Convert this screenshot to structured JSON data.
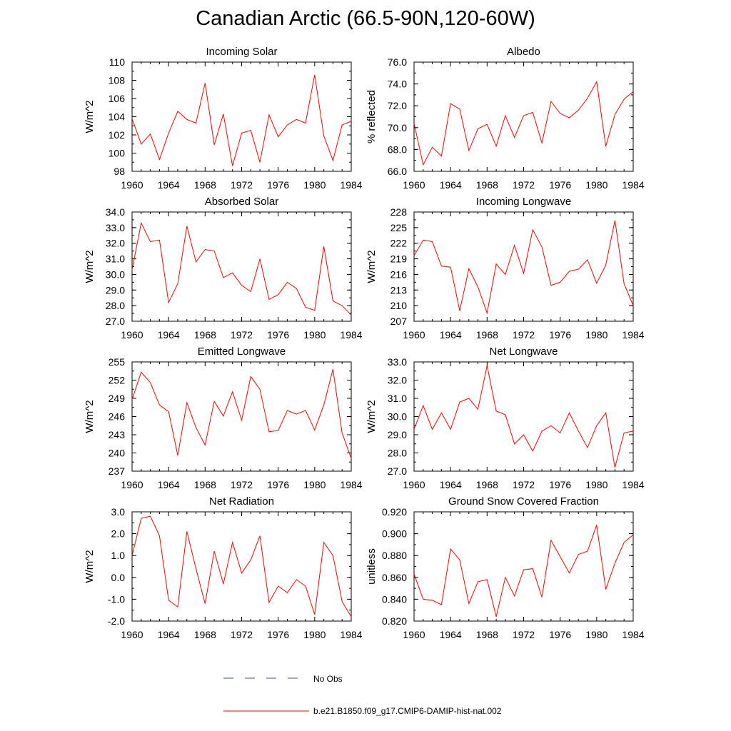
{
  "title": "Canadian Arctic (66.5-90N,120-60W)",
  "legend": {
    "entries": [
      {
        "label": "No Obs",
        "color": "#3d4fa1",
        "dash": "dashed"
      },
      {
        "label": "b.e21.B1850.f09_g17.CMIP6-DAMIP-hist-nat.002",
        "color": "#ff0000",
        "dash": "solid"
      }
    ]
  },
  "chart_data": [
    {
      "type": "line",
      "title": "Incoming Solar",
      "ylabel": "W/m^2",
      "xlabel": "",
      "xlim": [
        1960,
        1984
      ],
      "ylim": [
        98,
        110
      ],
      "xticks": [
        1960,
        1964,
        1968,
        1972,
        1976,
        1980,
        1984
      ],
      "yticks": [
        "98",
        "100",
        "102",
        "104",
        "106",
        "108",
        "110"
      ],
      "yminor": 1,
      "x": [
        1960,
        1961,
        1962,
        1963,
        1964,
        1965,
        1966,
        1967,
        1968,
        1969,
        1970,
        1971,
        1972,
        1973,
        1974,
        1975,
        1976,
        1977,
        1978,
        1979,
        1980,
        1981,
        1982,
        1983,
        1984
      ],
      "series": [
        {
          "name": "b.e21.B1850.f09_g17.CMIP6-DAMIP-hist-nat.002",
          "color": "#ff0000",
          "values": [
            103.8,
            101.0,
            102.1,
            99.3,
            102.2,
            104.6,
            103.7,
            103.3,
            107.7,
            100.9,
            104.3,
            98.6,
            102.2,
            102.5,
            99.0,
            104.2,
            101.8,
            103.1,
            103.7,
            103.3,
            108.6,
            101.9,
            99.2,
            103.1,
            103.5
          ]
        }
      ]
    },
    {
      "type": "line",
      "title": "Albedo",
      "ylabel": "% reflected",
      "xlabel": "",
      "xlim": [
        1960,
        1984
      ],
      "ylim": [
        66,
        76
      ],
      "xticks": [
        1960,
        1964,
        1968,
        1972,
        1976,
        1980,
        1984
      ],
      "yticks": [
        "66.0",
        "68.0",
        "70.0",
        "72.0",
        "74.0",
        "76.0"
      ],
      "yminor": 1,
      "x": [
        1960,
        1961,
        1962,
        1963,
        1964,
        1965,
        1966,
        1967,
        1968,
        1969,
        1970,
        1971,
        1972,
        1973,
        1974,
        1975,
        1976,
        1977,
        1978,
        1979,
        1980,
        1981,
        1982,
        1983,
        1984
      ],
      "series": [
        {
          "name": "b.e21.B1850.f09_g17.CMIP6-DAMIP-hist-nat.002",
          "color": "#ff0000",
          "values": [
            70.4,
            66.6,
            68.2,
            67.4,
            72.2,
            71.7,
            67.9,
            69.9,
            70.3,
            68.3,
            71.1,
            69.1,
            71.1,
            71.4,
            68.6,
            72.4,
            71.3,
            70.9,
            71.6,
            72.7,
            74.2,
            68.3,
            71.2,
            72.6,
            73.3
          ]
        }
      ]
    },
    {
      "type": "line",
      "title": "Absorbed Solar",
      "ylabel": "W/m^2",
      "xlabel": "",
      "xlim": [
        1960,
        1984
      ],
      "ylim": [
        27,
        34
      ],
      "xticks": [
        1960,
        1964,
        1968,
        1972,
        1976,
        1980,
        1984
      ],
      "yticks": [
        "27.0",
        "28.0",
        "29.0",
        "30.0",
        "31.0",
        "32.0",
        "33.0",
        "34.0"
      ],
      "yminor": 0.5,
      "x": [
        1960,
        1961,
        1962,
        1963,
        1964,
        1965,
        1966,
        1967,
        1968,
        1969,
        1970,
        1971,
        1972,
        1973,
        1974,
        1975,
        1976,
        1977,
        1978,
        1979,
        1980,
        1981,
        1982,
        1983,
        1984
      ],
      "series": [
        {
          "name": "b.e21.B1850.f09_g17.CMIP6-DAMIP-hist-nat.002",
          "color": "#ff0000",
          "values": [
            30.3,
            33.3,
            32.1,
            32.2,
            28.2,
            29.4,
            33.1,
            30.8,
            31.6,
            31.5,
            29.8,
            30.1,
            29.3,
            28.9,
            31.0,
            28.4,
            28.7,
            29.5,
            29.1,
            27.9,
            27.7,
            31.8,
            28.3,
            28.0,
            27.4
          ]
        }
      ]
    },
    {
      "type": "line",
      "title": "Incoming Longwave",
      "ylabel": "W/m^2",
      "xlabel": "",
      "xlim": [
        1960,
        1984
      ],
      "ylim": [
        207,
        228
      ],
      "xticks": [
        1960,
        1964,
        1968,
        1972,
        1976,
        1980,
        1984
      ],
      "yticks": [
        "207",
        "210",
        "213",
        "216",
        "219",
        "222",
        "225",
        "228"
      ],
      "yminor": 1.5,
      "x": [
        1960,
        1961,
        1962,
        1963,
        1964,
        1965,
        1966,
        1967,
        1968,
        1969,
        1970,
        1971,
        1972,
        1973,
        1974,
        1975,
        1976,
        1977,
        1978,
        1979,
        1980,
        1981,
        1982,
        1983,
        1984
      ],
      "series": [
        {
          "name": "b.e21.B1850.f09_g17.CMIP6-DAMIP-hist-nat.002",
          "color": "#ff0000",
          "values": [
            219.6,
            222.6,
            222.3,
            217.6,
            217.4,
            209.0,
            217.1,
            213.6,
            208.6,
            218.0,
            216.0,
            221.6,
            216.2,
            224.6,
            221.3,
            213.9,
            214.5,
            216.6,
            217.0,
            218.8,
            214.3,
            217.8,
            226.4,
            214.2,
            210.0
          ]
        }
      ]
    },
    {
      "type": "line",
      "title": "Emitted Longwave",
      "ylabel": "W/m^2",
      "xlabel": "",
      "xlim": [
        1960,
        1984
      ],
      "ylim": [
        237,
        255
      ],
      "xticks": [
        1960,
        1964,
        1968,
        1972,
        1976,
        1980,
        1984
      ],
      "yticks": [
        "237",
        "240",
        "243",
        "246",
        "249",
        "252",
        "255"
      ],
      "yminor": 1.5,
      "x": [
        1960,
        1961,
        1962,
        1963,
        1964,
        1965,
        1966,
        1967,
        1968,
        1969,
        1970,
        1971,
        1972,
        1973,
        1974,
        1975,
        1976,
        1977,
        1978,
        1979,
        1980,
        1981,
        1982,
        1983,
        1984
      ],
      "series": [
        {
          "name": "b.e21.B1850.f09_g17.CMIP6-DAMIP-hist-nat.002",
          "color": "#ff0000",
          "values": [
            248.8,
            253.3,
            251.6,
            247.9,
            246.8,
            239.6,
            248.3,
            244.2,
            241.3,
            248.5,
            246.1,
            250.1,
            245.4,
            252.6,
            250.5,
            243.5,
            243.7,
            247.0,
            246.4,
            247.0,
            243.8,
            247.9,
            253.8,
            243.3,
            239.1
          ]
        }
      ]
    },
    {
      "type": "line",
      "title": "Net Longwave",
      "ylabel": "W/m^2",
      "xlabel": "",
      "xlim": [
        1960,
        1984
      ],
      "ylim": [
        27,
        33
      ],
      "xticks": [
        1960,
        1964,
        1968,
        1972,
        1976,
        1980,
        1984
      ],
      "yticks": [
        "27.0",
        "28.0",
        "29.0",
        "30.0",
        "31.0",
        "32.0",
        "33.0"
      ],
      "yminor": 0.5,
      "x": [
        1960,
        1961,
        1962,
        1963,
        1964,
        1965,
        1966,
        1967,
        1968,
        1969,
        1970,
        1971,
        1972,
        1973,
        1974,
        1975,
        1976,
        1977,
        1978,
        1979,
        1980,
        1981,
        1982,
        1983,
        1984
      ],
      "series": [
        {
          "name": "b.e21.B1850.f09_g17.CMIP6-DAMIP-hist-nat.002",
          "color": "#ff0000",
          "values": [
            29.3,
            30.6,
            29.3,
            30.2,
            29.3,
            30.8,
            31.0,
            30.4,
            32.8,
            30.3,
            30.1,
            28.5,
            29.0,
            28.1,
            29.2,
            29.5,
            29.1,
            30.2,
            29.2,
            28.3,
            29.5,
            30.2,
            27.2,
            29.1,
            29.2
          ]
        }
      ]
    },
    {
      "type": "line",
      "title": "Net Radiation",
      "ylabel": "W/m^2",
      "xlabel": "",
      "xlim": [
        1960,
        1984
      ],
      "ylim": [
        -2,
        3
      ],
      "xticks": [
        1960,
        1964,
        1968,
        1972,
        1976,
        1980,
        1984
      ],
      "yticks": [
        "-2.0",
        "-1.0",
        "0.0",
        "1.0",
        "2.0",
        "3.0"
      ],
      "yminor": 0.5,
      "x": [
        1960,
        1961,
        1962,
        1963,
        1964,
        1965,
        1966,
        1967,
        1968,
        1969,
        1970,
        1971,
        1972,
        1973,
        1974,
        1975,
        1976,
        1977,
        1978,
        1979,
        1980,
        1981,
        1982,
        1983,
        1984
      ],
      "series": [
        {
          "name": "b.e21.B1850.f09_g17.CMIP6-DAMIP-hist-nat.002",
          "color": "#ff0000",
          "values": [
            1.0,
            2.7,
            2.8,
            1.9,
            -1.05,
            -1.35,
            2.1,
            0.4,
            -1.2,
            1.2,
            -0.3,
            1.6,
            0.2,
            0.8,
            1.9,
            -1.15,
            -0.4,
            -0.7,
            -0.1,
            -0.4,
            -1.7,
            1.6,
            1.0,
            -1.1,
            -1.8
          ]
        }
      ]
    },
    {
      "type": "line",
      "title": "Ground Snow Covered Fraction",
      "ylabel": "unitless",
      "xlabel": "",
      "xlim": [
        1960,
        1984
      ],
      "ylim": [
        0.82,
        0.92
      ],
      "xticks": [
        1960,
        1964,
        1968,
        1972,
        1976,
        1980,
        1984
      ],
      "yticks": [
        "0.820",
        "0.840",
        "0.860",
        "0.880",
        "0.900",
        "0.920"
      ],
      "yminor": 0.01,
      "x": [
        1960,
        1961,
        1962,
        1963,
        1964,
        1965,
        1966,
        1967,
        1968,
        1969,
        1970,
        1971,
        1972,
        1973,
        1974,
        1975,
        1976,
        1977,
        1978,
        1979,
        1980,
        1981,
        1982,
        1983,
        1984
      ],
      "series": [
        {
          "name": "b.e21.B1850.f09_g17.CMIP6-DAMIP-hist-nat.002",
          "color": "#ff0000",
          "values": [
            0.863,
            0.84,
            0.839,
            0.835,
            0.886,
            0.876,
            0.836,
            0.856,
            0.858,
            0.824,
            0.86,
            0.843,
            0.867,
            0.868,
            0.842,
            0.894,
            0.879,
            0.864,
            0.881,
            0.884,
            0.908,
            0.849,
            0.873,
            0.892,
            0.899
          ]
        }
      ]
    }
  ]
}
